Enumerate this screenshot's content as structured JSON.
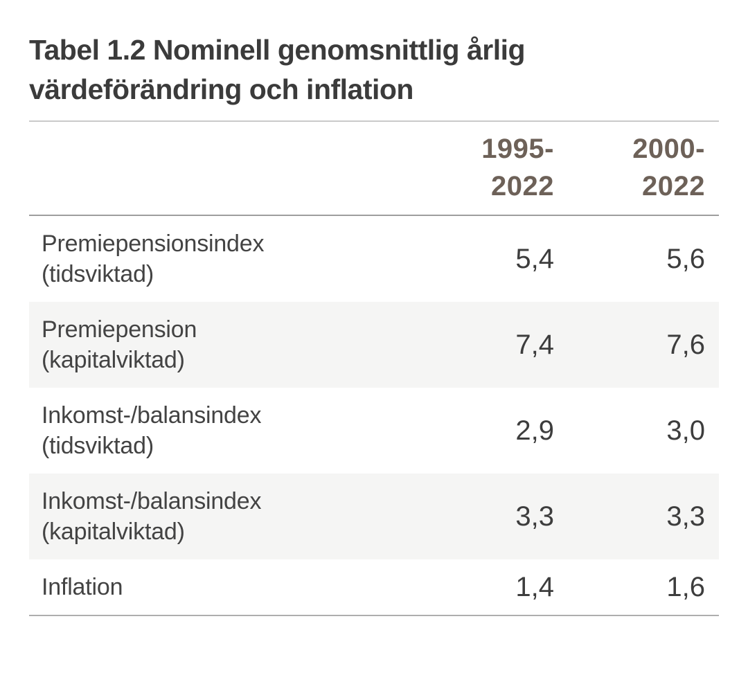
{
  "page": {
    "title": "Tabel 1.2 Nominell genomsnittlig årlig värdeförändring och inflation"
  },
  "table": {
    "column_headers": [
      {
        "line1": "1995-",
        "line2": "2022"
      },
      {
        "line1": "2000-",
        "line2": "2022"
      }
    ],
    "rows": [
      {
        "name": "Premiepensionsindex",
        "qualifier": "(tidsviktad)",
        "v1995_2022": "5,4",
        "v2000_2022": "5,6"
      },
      {
        "name": "Premiepension",
        "qualifier": "(kapitalviktad)",
        "v1995_2022": "7,4",
        "v2000_2022": "7,6"
      },
      {
        "name": "Inkomst-/balansindex",
        "qualifier": "(tidsviktad)",
        "v1995_2022": "2,9",
        "v2000_2022": "3,0"
      },
      {
        "name": "Inkomst-/balansindex",
        "qualifier": "(kapitalviktad)",
        "v1995_2022": "3,3",
        "v2000_2022": "3,3"
      },
      {
        "name": "Inflation",
        "qualifier": "",
        "v1995_2022": "1,4",
        "v2000_2022": "1,6"
      }
    ]
  },
  "colors": {
    "title_text": "#3b3b3b",
    "header_text": "#6d6158",
    "label_text": "#434343",
    "value_text": "#3d3d3d",
    "zebra_row": "#f5f5f4",
    "rule_top": "#c9c9c9",
    "rule_header": "#9e9e9e",
    "rule_bottom": "#aeaeae"
  }
}
